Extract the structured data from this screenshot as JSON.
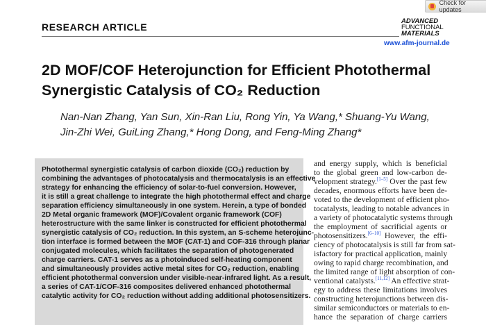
{
  "updates_badge": {
    "label": "Check for updates",
    "icon": "check-for-updates-icon"
  },
  "header": {
    "section": "RESEARCH ARTICLE",
    "journal_logo": [
      "ADVANCED",
      "FUNCTIONAL",
      "MATERIALS"
    ],
    "url": "www.afm-journal.de"
  },
  "article": {
    "title_lines": [
      "2D MOF/COF Heterojunction for Efficient Photothermal",
      "Synergistic Catalysis of CO₂ Reduction"
    ],
    "author_lines": [
      "Nan-Nan Zhang, Yan Sun, Xin-Ran Liu, Rong Yin, Ya Wang,* Shuang-Yu Wang,",
      "Jin-Zhi Wei, GuiLing Zhang,* Hong Dong, and Feng-Ming Zhang*"
    ],
    "abstract_lines": [
      "Photothermal synergistic catalysis of carbon dioxide (CO₂) reduction by",
      "combining the advantages of photocatalysis and thermocatalysis is an effective",
      "strategy for enhancing the efficiency of solar-to-fuel conversion. However,",
      "it is still a great challenge to integrate the high photothermal effect and charge",
      "separation efficiency simultaneously in one system. Herein, a type of bonded",
      "2D Metal organic framework (MOF)/Covalent organic framework (COF)",
      "heterostructure with the same linker is constructed for efficient photothermal",
      "synergistic catalysis of CO₂ reduction. In this system, an S-scheme heterojunc-",
      "tion interface is formed between the MOF (CAT-1) and COF-316 through planar",
      "conjugated molecules, which facilitates the separation of photogenerated",
      "charge carriers. CAT-1 serves as a photoinduced self-heating component",
      "and simultaneously provides active metal sites for CO₂ reduction, enabling",
      "efficient photothermal conversion under visible-near-infrared light. As a result,",
      "a series of CAT-1/COF-316 composites delivered enhanced photothermal",
      "catalytic activity for CO₂ reduction without adding additional photosensitizers."
    ],
    "body_lines": [
      "and energy supply, which is beneficial",
      "to the global green and low-carbon de-",
      "velopment strategy.[1–5] Over the past few",
      "decades, enormous efforts have been de-",
      "voted to the development of efficient pho-",
      "tocatalysts, leading to notable advances in",
      "a variety of photocatalytic systems through",
      "the employment of sacrificial agents or",
      "photosensitizers.[6–10] However, the effi-",
      "ciency of photocatalysis is still far from sat-",
      "isfactory for practical application, mainly",
      "owing to rapid charge recombination, and",
      "the limited range of light absorption of con-",
      "ventional catalysts.[11,12] An effective strat-",
      "egy to address these limitations involves",
      "constructing heterojunctions between dis-",
      "similar semiconductors or materials to en-",
      "hance the separation of charge carriers"
    ],
    "colors": {
      "citation": "#2a55d6",
      "abstract_bg": "#d9d9d9",
      "url": "#1a4fd6"
    }
  }
}
